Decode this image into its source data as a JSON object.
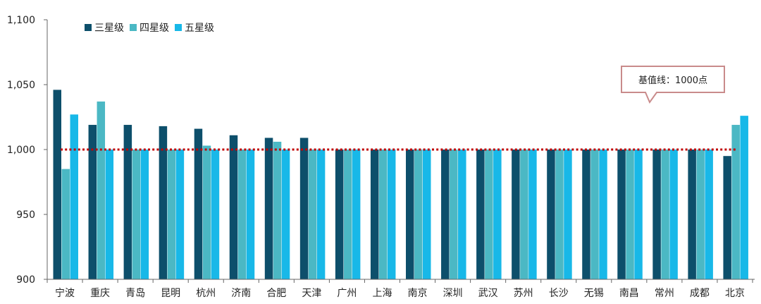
{
  "chart_data": {
    "type": "bar",
    "categories": [
      "宁波",
      "重庆",
      "青岛",
      "昆明",
      "杭州",
      "济南",
      "合肥",
      "天津",
      "广州",
      "上海",
      "南京",
      "深圳",
      "武汉",
      "苏州",
      "长沙",
      "无锡",
      "南昌",
      "常州",
      "成都",
      "北京"
    ],
    "series": [
      {
        "name": "三星级",
        "color": "#0d4f6b",
        "values": [
          1046,
          1019,
          1019,
          1018,
          1016,
          1011,
          1009,
          1009,
          1000,
          1000,
          1000,
          1000,
          1000,
          1000,
          1000,
          1000,
          1000,
          1000,
          1000,
          995
        ]
      },
      {
        "name": "四星级",
        "color": "#4bb8c4",
        "values": [
          985,
          1037,
          1000,
          1000,
          1003,
          1000,
          1006,
          1000,
          1000,
          1000,
          1000,
          1000,
          1000,
          1000,
          1000,
          1000,
          1000,
          1000,
          1000,
          1019
        ]
      },
      {
        "name": "五星级",
        "color": "#18b8e8",
        "values": [
          1027,
          1000,
          1000,
          1000,
          1000,
          1000,
          1000,
          1000,
          1000,
          1000,
          1000,
          1000,
          1000,
          1000,
          1000,
          1000,
          1000,
          1000,
          1000,
          1026
        ]
      }
    ],
    "y_ticks": [
      "900",
      "950",
      "1,000",
      "1,050",
      "1,100"
    ],
    "ylim": [
      900,
      1100
    ],
    "grid": false,
    "legend_position": "top-left",
    "baseline": {
      "value": 1000,
      "color": "#c00000",
      "label": "基值线：1000点"
    },
    "annotation_box_color": "#c98b8b"
  }
}
